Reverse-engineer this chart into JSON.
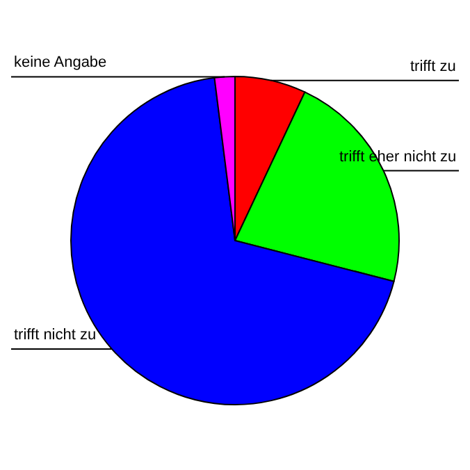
{
  "chart_data": {
    "type": "pie",
    "categories": [
      "trifft zu",
      "trifft eher nicht zu",
      "trifft nicht zu",
      "keine Angabe"
    ],
    "values": [
      7,
      22,
      69,
      2
    ],
    "colors": [
      "#ff0000",
      "#00ff00",
      "#0000ff",
      "#ff00ff"
    ],
    "legend": false
  }
}
